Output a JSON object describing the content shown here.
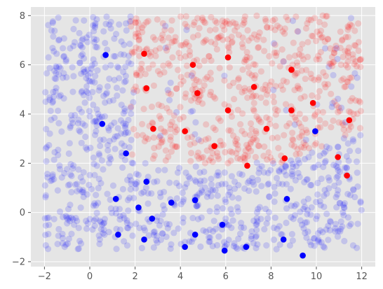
{
  "chart_data": {
    "type": "scatter",
    "title": "",
    "xlabel": "",
    "ylabel": "",
    "xlim": [
      -2.6,
      12.6
    ],
    "ylim": [
      -2.2,
      8.35
    ],
    "grid": true,
    "legend": "none",
    "x_ticks": [
      -2,
      0,
      2,
      4,
      6,
      8,
      10,
      12
    ],
    "y_ticks": [
      -2,
      0,
      2,
      4,
      6,
      8
    ],
    "colors": {
      "background": "#e5e5e5",
      "grid": "#ffffff",
      "blue": "#0000ff",
      "red": "#ff0000",
      "tick_text": "#555555"
    },
    "background_points": {
      "description_of_rule": "x in [-2,12], y in [-1.5,8]; red if x > 2 and y > 2 and not near lower-right border, else blue",
      "count": 1500,
      "alpha": 0.15
    },
    "series": [
      {
        "color": "blue",
        "points": [
          [
            0.7,
            6.4
          ],
          [
            0.55,
            3.6
          ],
          [
            1.6,
            2.4
          ],
          [
            2.5,
            1.25
          ],
          [
            2.15,
            0.2
          ],
          [
            1.15,
            0.55
          ],
          [
            1.25,
            -0.9
          ],
          [
            2.75,
            -0.25
          ],
          [
            2.4,
            -1.1
          ],
          [
            3.6,
            0.4
          ],
          [
            4.65,
            0.5
          ],
          [
            4.2,
            -1.4
          ],
          [
            4.65,
            -0.9
          ],
          [
            5.85,
            -0.5
          ],
          [
            5.95,
            -1.55
          ],
          [
            6.9,
            -1.4
          ],
          [
            8.55,
            -1.1
          ],
          [
            8.7,
            0.55
          ],
          [
            9.4,
            -1.75
          ],
          [
            9.95,
            3.3
          ]
        ]
      },
      {
        "color": "red",
        "points": [
          [
            2.4,
            6.45
          ],
          [
            2.5,
            5.05
          ],
          [
            2.8,
            3.4
          ],
          [
            4.55,
            6.0
          ],
          [
            4.75,
            4.85
          ],
          [
            4.2,
            3.3
          ],
          [
            6.1,
            6.3
          ],
          [
            6.1,
            4.15
          ],
          [
            5.5,
            2.7
          ],
          [
            7.25,
            5.1
          ],
          [
            7.8,
            3.4
          ],
          [
            6.95,
            1.9
          ],
          [
            8.9,
            5.8
          ],
          [
            8.9,
            4.15
          ],
          [
            8.6,
            2.2
          ],
          [
            9.85,
            4.45
          ],
          [
            11.45,
            3.75
          ],
          [
            10.95,
            2.25
          ],
          [
            11.35,
            1.5
          ]
        ]
      }
    ]
  }
}
